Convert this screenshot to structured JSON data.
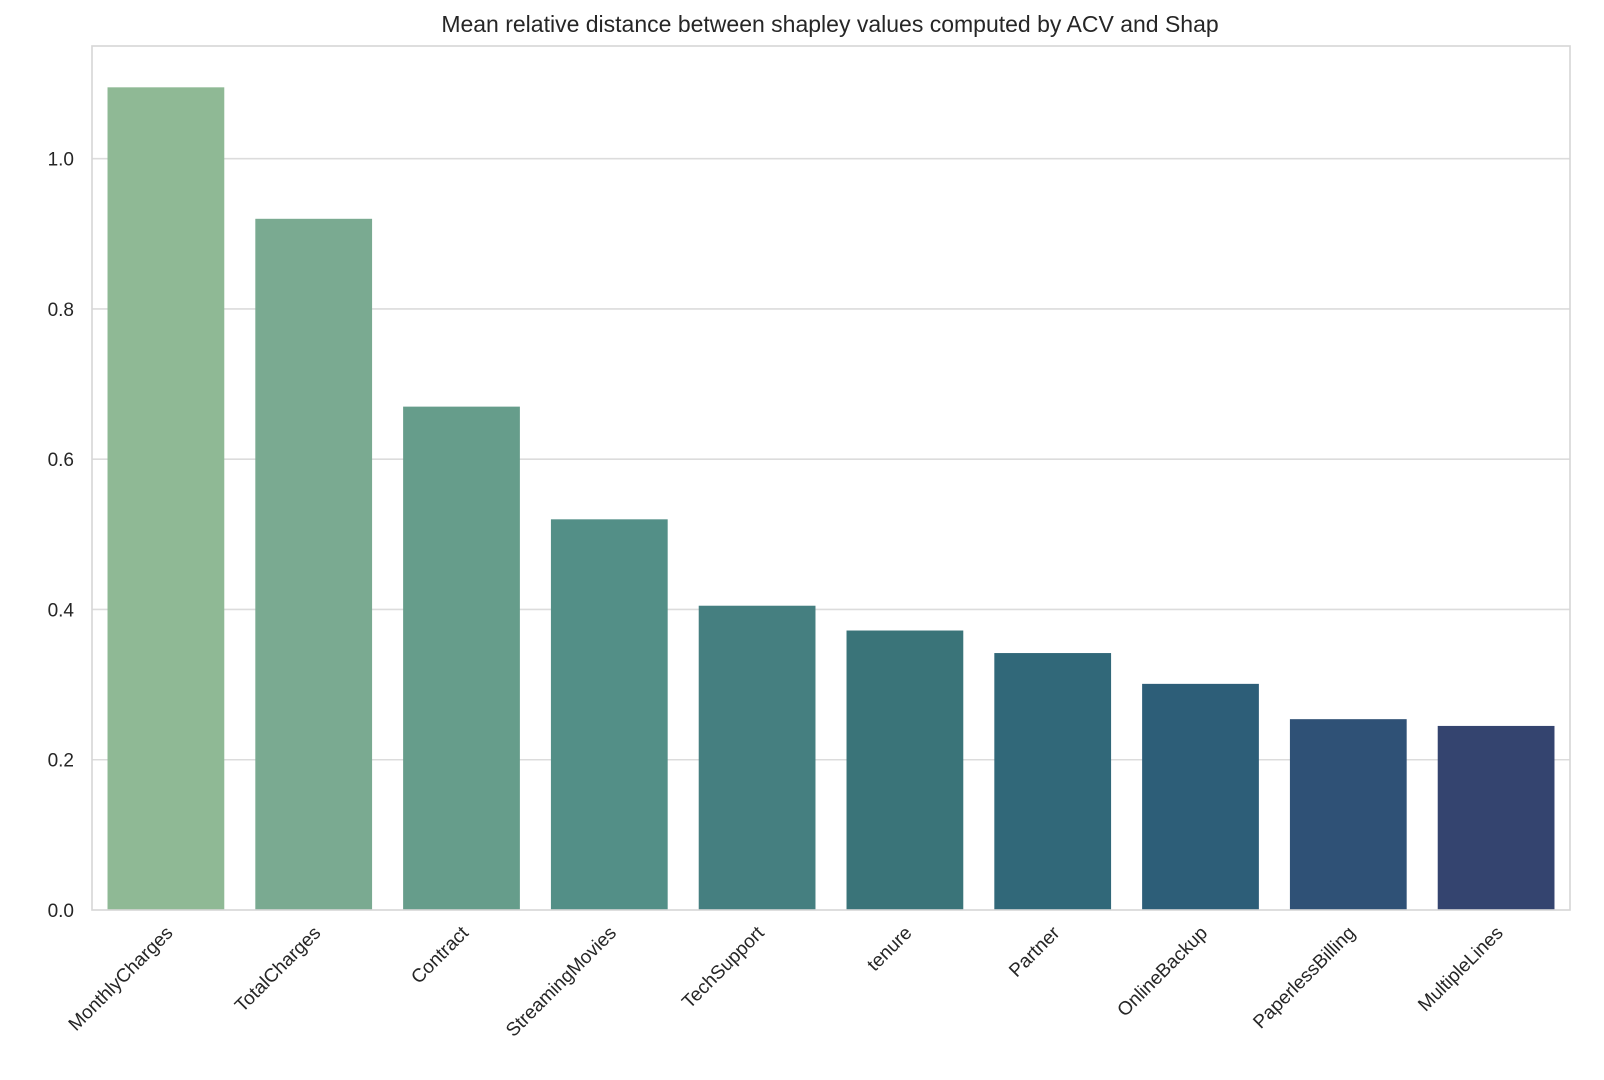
{
  "chart_data": {
    "type": "bar",
    "title": "Mean relative distance between shapley values computed by ACV and Shap",
    "xlabel": "",
    "ylabel": "",
    "categories": [
      "MonthlyCharges",
      "TotalCharges",
      "Contract",
      "StreamingMovies",
      "TechSupport",
      "tenure",
      "Partner",
      "OnlineBackup",
      "PaperlessBilling",
      "MultipleLines"
    ],
    "values": [
      1.095,
      0.92,
      0.67,
      0.52,
      0.405,
      0.372,
      0.342,
      0.301,
      0.254,
      0.245
    ],
    "colors": [
      "#8fb995",
      "#7aaa91",
      "#669d8b",
      "#538f87",
      "#457f80",
      "#3a7479",
      "#316879",
      "#2d5e78",
      "#2f5176",
      "#34446f"
    ],
    "ylim": [
      0,
      1.15
    ],
    "yticks": [
      0.0,
      0.2,
      0.4,
      0.6,
      0.8,
      1.0
    ],
    "ytick_labels": [
      "0.0",
      "0.2",
      "0.4",
      "0.6",
      "0.8",
      "1.0"
    ],
    "grid": true,
    "legend": "none"
  }
}
